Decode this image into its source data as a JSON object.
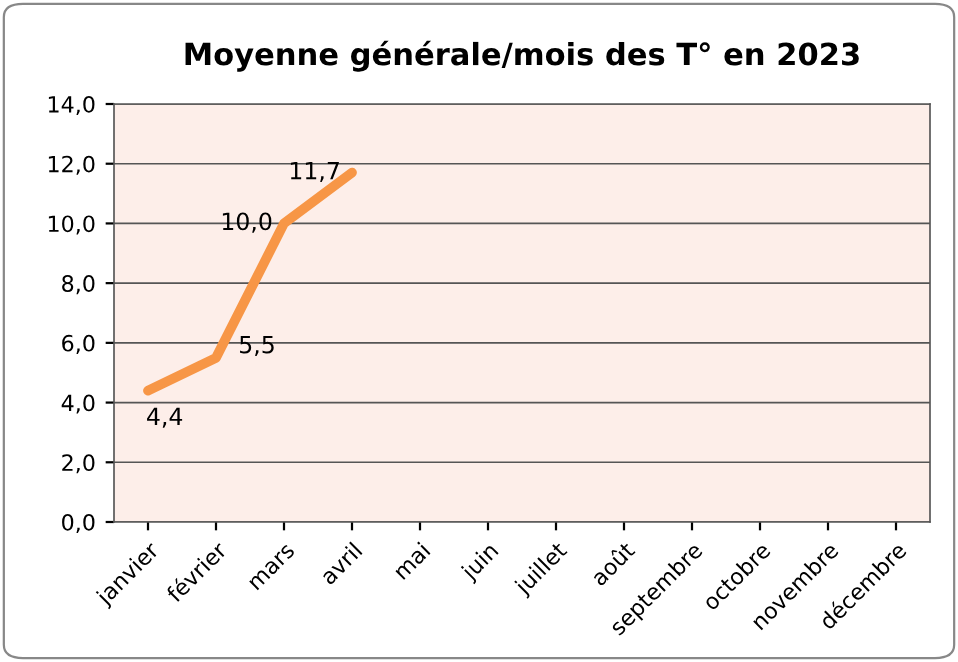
{
  "chart_data": {
    "type": "line",
    "title": "Moyenne générale/mois des T° en 2023",
    "categories": [
      "janvier",
      "février",
      "mars",
      "avril",
      "mai",
      "juin",
      "juillet",
      "août",
      "septembre",
      "octobre",
      "novembre",
      "décembre"
    ],
    "series": [
      {
        "color": "#f79646",
        "values": [
          4.4,
          5.5,
          10.0,
          11.7,
          null,
          null,
          null,
          null,
          null,
          null,
          null,
          null
        ],
        "value_labels": [
          "4,4",
          "5,5",
          "10,0",
          "11,7",
          null,
          null,
          null,
          null,
          null,
          null,
          null,
          null
        ]
      }
    ],
    "ylim": [
      0,
      14
    ],
    "yticks": [
      {
        "value": 0,
        "label": "0,0"
      },
      {
        "value": 2,
        "label": "2,0"
      },
      {
        "value": 4,
        "label": "4,0"
      },
      {
        "value": 6,
        "label": "6,0"
      },
      {
        "value": 8,
        "label": "8,0"
      },
      {
        "value": 10,
        "label": "10,0"
      },
      {
        "value": 12,
        "label": "12,0"
      },
      {
        "value": 14,
        "label": "14,0"
      }
    ],
    "grid": "y",
    "legend": false,
    "marker": "none",
    "line_style": "solid"
  }
}
